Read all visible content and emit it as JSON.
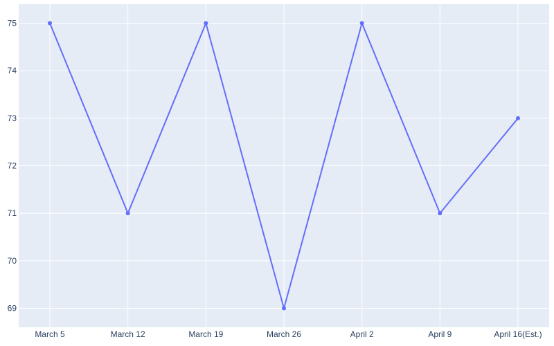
{
  "chart_data": {
    "type": "line",
    "title": "",
    "xlabel": "",
    "ylabel": "",
    "categories": [
      "March 5",
      "March 12",
      "March 19",
      "March 26",
      "April 2",
      "April 9",
      "April 16(Est.)"
    ],
    "series": [
      {
        "values": [
          75,
          71,
          75,
          69,
          75,
          71,
          73
        ],
        "color": "#636efa"
      }
    ],
    "ylim": [
      68.6,
      75.4
    ],
    "yticks": [
      69,
      70,
      71,
      72,
      73,
      74,
      75
    ],
    "grid": true,
    "legend": "none",
    "plot_background": "#e5ecf6",
    "grid_color": "#ffffff"
  }
}
